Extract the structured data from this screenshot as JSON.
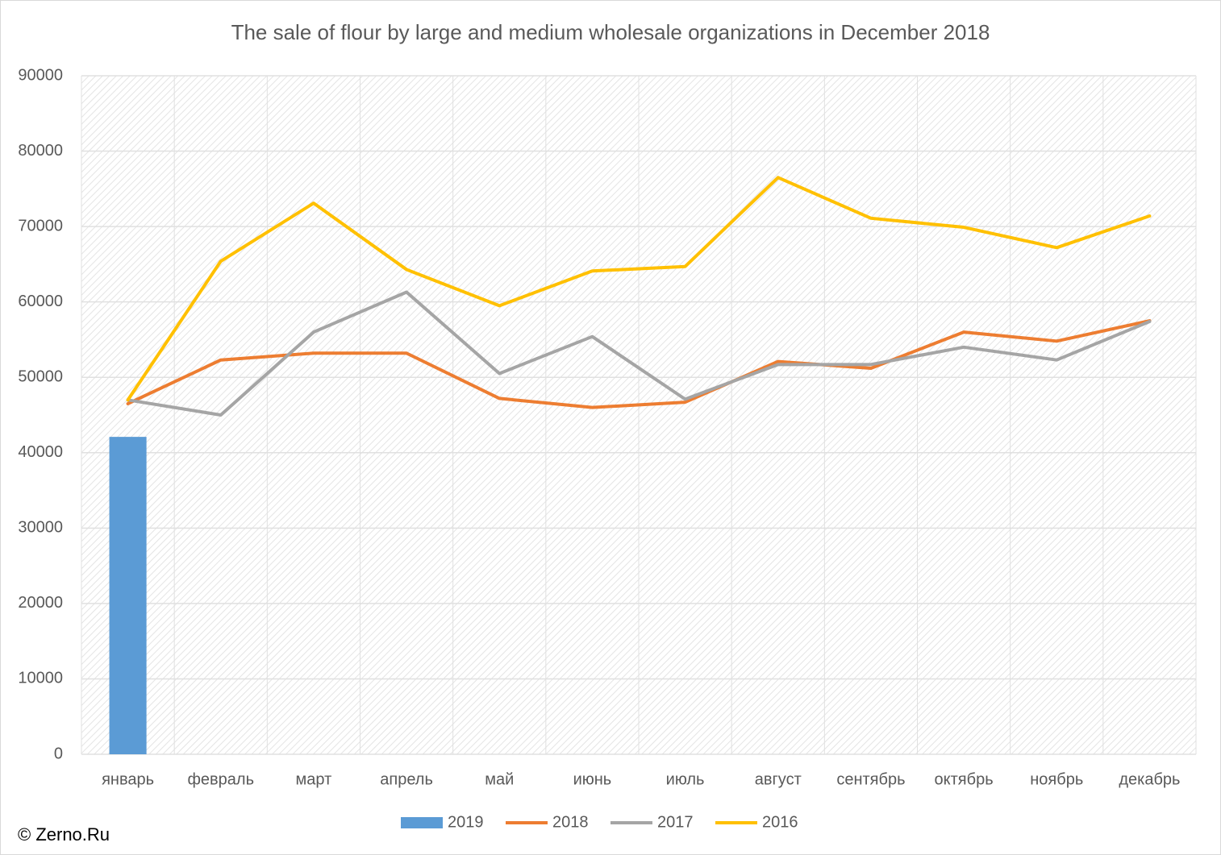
{
  "chart_data": {
    "type": "combo",
    "title": "The sale of flour by large and medium wholesale organizations in December 2018",
    "categories": [
      "январь",
      "февраль",
      "март",
      "апрель",
      "май",
      "июнь",
      "июль",
      "август",
      "сентябрь",
      "октябрь",
      "ноябрь",
      "декабрь"
    ],
    "series": [
      {
        "name": "2019",
        "type": "bar",
        "color": "#5b9bd5",
        "values": [
          42100,
          null,
          null,
          null,
          null,
          null,
          null,
          null,
          null,
          null,
          null,
          null
        ]
      },
      {
        "name": "2018",
        "type": "line",
        "color": "#ed7d31",
        "values": [
          46500,
          52300,
          53200,
          53200,
          47200,
          46000,
          46700,
          52100,
          51200,
          56000,
          54800,
          57500
        ]
      },
      {
        "name": "2017",
        "type": "line",
        "color": "#a5a5a5",
        "values": [
          47000,
          45000,
          56000,
          61300,
          50500,
          55400,
          47100,
          51700,
          51700,
          54000,
          52300,
          57400
        ]
      },
      {
        "name": "2016",
        "type": "line",
        "color": "#ffc000",
        "values": [
          47000,
          65400,
          73100,
          64300,
          59500,
          64100,
          64700,
          76500,
          71100,
          69900,
          67200,
          71400
        ]
      }
    ],
    "ylim": [
      0,
      90000
    ],
    "yticks": [
      0,
      10000,
      20000,
      30000,
      40000,
      50000,
      60000,
      70000,
      80000,
      90000
    ],
    "grid": true,
    "legend": "bottom",
    "watermark": "© Zerno.Ru"
  }
}
